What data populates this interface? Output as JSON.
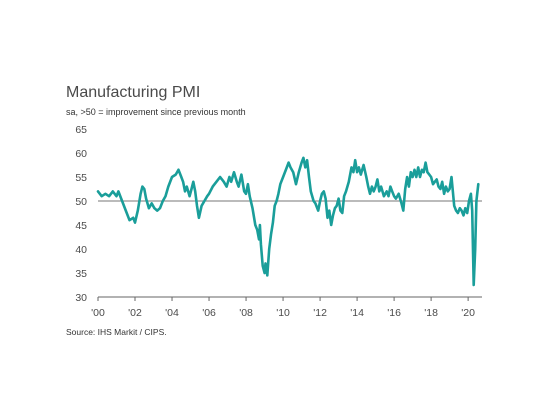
{
  "chart_data": {
    "type": "line",
    "title": "Manufacturing PMI",
    "subtitle": "sa, >50 = improvement since previous month",
    "source": "Source: IHS Markit / CIPS.",
    "xlabel": "",
    "ylabel": "",
    "xlim": [
      2000.0,
      2020.75
    ],
    "ylim": [
      30,
      65
    ],
    "yticks": [
      30,
      35,
      40,
      45,
      50,
      55,
      60,
      65
    ],
    "xticks": [
      {
        "value": 2000,
        "label": "'00"
      },
      {
        "value": 2002,
        "label": "'02"
      },
      {
        "value": 2004,
        "label": "'04"
      },
      {
        "value": 2006,
        "label": "'06"
      },
      {
        "value": 2008,
        "label": "'08"
      },
      {
        "value": 2010,
        "label": "'10"
      },
      {
        "value": 2012,
        "label": "'12"
      },
      {
        "value": 2014,
        "label": "'14"
      },
      {
        "value": 2016,
        "label": "'16"
      },
      {
        "value": 2018,
        "label": "'18"
      },
      {
        "value": 2020,
        "label": "'20"
      }
    ],
    "reference_line": 50,
    "series": [
      {
        "color": "#1a9e9a",
        "points": [
          [
            2000.0,
            52
          ],
          [
            2000.2,
            51
          ],
          [
            2000.4,
            51.5
          ],
          [
            2000.6,
            51
          ],
          [
            2000.8,
            52
          ],
          [
            2001.0,
            51
          ],
          [
            2001.1,
            52
          ],
          [
            2001.3,
            50
          ],
          [
            2001.5,
            48
          ],
          [
            2001.7,
            46
          ],
          [
            2001.9,
            46.5
          ],
          [
            2002.0,
            45.5
          ],
          [
            2002.15,
            48
          ],
          [
            2002.3,
            51.5
          ],
          [
            2002.4,
            53
          ],
          [
            2002.5,
            52.5
          ],
          [
            2002.6,
            50.5
          ],
          [
            2002.75,
            48.5
          ],
          [
            2002.9,
            49.5
          ],
          [
            2003.05,
            48.5
          ],
          [
            2003.2,
            48
          ],
          [
            2003.35,
            48.5
          ],
          [
            2003.5,
            50
          ],
          [
            2003.65,
            51
          ],
          [
            2003.8,
            53
          ],
          [
            2004.0,
            55
          ],
          [
            2004.2,
            55.5
          ],
          [
            2004.35,
            56.5
          ],
          [
            2004.5,
            55
          ],
          [
            2004.6,
            54
          ],
          [
            2004.7,
            52
          ],
          [
            2004.8,
            53
          ],
          [
            2004.95,
            51
          ],
          [
            2005.05,
            52.5
          ],
          [
            2005.15,
            54
          ],
          [
            2005.25,
            52
          ],
          [
            2005.35,
            49
          ],
          [
            2005.45,
            46.5
          ],
          [
            2005.6,
            49
          ],
          [
            2005.75,
            50
          ],
          [
            2005.9,
            51
          ],
          [
            2006.0,
            51.5
          ],
          [
            2006.2,
            53
          ],
          [
            2006.4,
            54
          ],
          [
            2006.6,
            55
          ],
          [
            2006.8,
            54
          ],
          [
            2006.95,
            53
          ],
          [
            2007.1,
            55
          ],
          [
            2007.2,
            54
          ],
          [
            2007.35,
            56
          ],
          [
            2007.5,
            54
          ],
          [
            2007.6,
            53
          ],
          [
            2007.75,
            55.5
          ],
          [
            2007.9,
            52
          ],
          [
            2008.0,
            51.5
          ],
          [
            2008.1,
            53.5
          ],
          [
            2008.2,
            51
          ],
          [
            2008.35,
            48.5
          ],
          [
            2008.5,
            45
          ],
          [
            2008.6,
            44
          ],
          [
            2008.7,
            42
          ],
          [
            2008.75,
            45
          ],
          [
            2008.8,
            41
          ],
          [
            2008.9,
            36.5
          ],
          [
            2009.0,
            35
          ],
          [
            2009.05,
            37
          ],
          [
            2009.15,
            34.5
          ],
          [
            2009.25,
            40
          ],
          [
            2009.35,
            43
          ],
          [
            2009.45,
            45.5
          ],
          [
            2009.55,
            49
          ],
          [
            2009.65,
            50
          ],
          [
            2009.75,
            51.5
          ],
          [
            2009.85,
            53.5
          ],
          [
            2010.0,
            55
          ],
          [
            2010.2,
            57
          ],
          [
            2010.3,
            58
          ],
          [
            2010.4,
            57
          ],
          [
            2010.55,
            56
          ],
          [
            2010.7,
            53.5
          ],
          [
            2010.85,
            56
          ],
          [
            2011.0,
            58
          ],
          [
            2011.1,
            59
          ],
          [
            2011.2,
            57
          ],
          [
            2011.3,
            58.5
          ],
          [
            2011.4,
            55
          ],
          [
            2011.5,
            52
          ],
          [
            2011.65,
            50
          ],
          [
            2011.75,
            49.5
          ],
          [
            2011.9,
            48
          ],
          [
            2012.0,
            50
          ],
          [
            2012.1,
            51.5
          ],
          [
            2012.2,
            52
          ],
          [
            2012.3,
            50.5
          ],
          [
            2012.4,
            46.5
          ],
          [
            2012.5,
            48
          ],
          [
            2012.6,
            45
          ],
          [
            2012.7,
            47
          ],
          [
            2012.8,
            48.5
          ],
          [
            2012.9,
            49
          ],
          [
            2013.0,
            50.5
          ],
          [
            2013.1,
            48
          ],
          [
            2013.2,
            47.5
          ],
          [
            2013.3,
            51
          ],
          [
            2013.4,
            52
          ],
          [
            2013.55,
            54
          ],
          [
            2013.7,
            57
          ],
          [
            2013.8,
            56
          ],
          [
            2013.9,
            58.5
          ],
          [
            2014.0,
            56
          ],
          [
            2014.1,
            57
          ],
          [
            2014.2,
            55.5
          ],
          [
            2014.35,
            57.5
          ],
          [
            2014.5,
            55
          ],
          [
            2014.6,
            53
          ],
          [
            2014.7,
            51.5
          ],
          [
            2014.8,
            53
          ],
          [
            2014.9,
            52
          ],
          [
            2015.0,
            53
          ],
          [
            2015.1,
            54.5
          ],
          [
            2015.2,
            52
          ],
          [
            2015.3,
            53
          ],
          [
            2015.45,
            51
          ],
          [
            2015.6,
            52
          ],
          [
            2015.7,
            51
          ],
          [
            2015.8,
            53
          ],
          [
            2015.9,
            52
          ],
          [
            2016.0,
            51
          ],
          [
            2016.1,
            50.5
          ],
          [
            2016.25,
            51.5
          ],
          [
            2016.4,
            49.5
          ],
          [
            2016.5,
            48
          ],
          [
            2016.6,
            52.5
          ],
          [
            2016.7,
            55
          ],
          [
            2016.8,
            53
          ],
          [
            2016.9,
            56
          ],
          [
            2017.0,
            55
          ],
          [
            2017.1,
            56.5
          ],
          [
            2017.2,
            55
          ],
          [
            2017.3,
            57
          ],
          [
            2017.4,
            55
          ],
          [
            2017.5,
            56.5
          ],
          [
            2017.6,
            56
          ],
          [
            2017.7,
            58
          ],
          [
            2017.8,
            56
          ],
          [
            2017.9,
            55.5
          ],
          [
            2018.0,
            55
          ],
          [
            2018.1,
            53.5
          ],
          [
            2018.2,
            54
          ],
          [
            2018.3,
            54.5
          ],
          [
            2018.4,
            53
          ],
          [
            2018.5,
            52.5
          ],
          [
            2018.6,
            54
          ],
          [
            2018.7,
            51.5
          ],
          [
            2018.8,
            53
          ],
          [
            2018.9,
            52
          ],
          [
            2019.0,
            52.5
          ],
          [
            2019.1,
            55
          ],
          [
            2019.15,
            53
          ],
          [
            2019.25,
            49
          ],
          [
            2019.35,
            48
          ],
          [
            2019.45,
            47.5
          ],
          [
            2019.55,
            48.5
          ],
          [
            2019.65,
            48
          ],
          [
            2019.75,
            47
          ],
          [
            2019.85,
            48.5
          ],
          [
            2019.95,
            47.5
          ],
          [
            2020.05,
            50
          ],
          [
            2020.15,
            51.5
          ],
          [
            2020.22,
            48
          ],
          [
            2020.3,
            32.5
          ],
          [
            2020.38,
            40
          ],
          [
            2020.45,
            50
          ],
          [
            2020.55,
            53.5
          ]
        ]
      }
    ]
  }
}
